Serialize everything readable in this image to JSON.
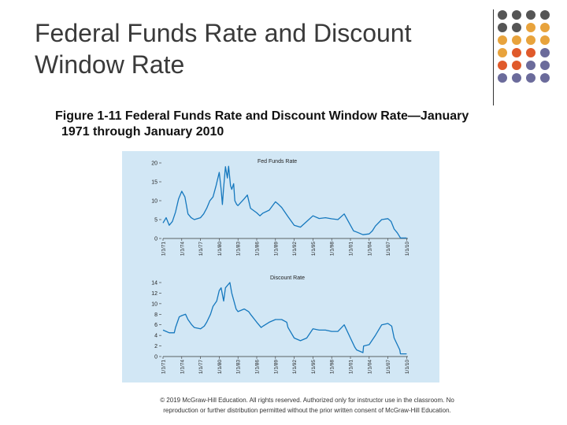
{
  "slide": {
    "title_line1": "Federal Funds Rate and Discount",
    "title_line2": "Window Rate",
    "caption_line1": "Figure 1-11 Federal Funds Rate and Discount Window Rate—January",
    "caption_line2": "1971 through January 2010",
    "copyright_line1": "© 2019 McGraw-Hill Education. All rights reserved. Authorized only for instructor use in the classroom. No",
    "copyright_line2": "reproduction or further distribution permitted without the prior written consent of McGraw-Hill Education."
  },
  "decor": {
    "dot_colors": [
      "#555555",
      "#e8a33c",
      "#e05a2b",
      "#6b6b9b"
    ]
  },
  "chart_data": [
    {
      "type": "line",
      "title": "Fed Funds Rate",
      "xlabel": "",
      "ylabel": "",
      "ylim": [
        0,
        20
      ],
      "yticks": [
        0,
        5,
        10,
        15,
        20
      ],
      "ytick_labels": [
        "0",
        "5",
        "10",
        "15",
        "20"
      ],
      "xlim": [
        1971,
        2010.2
      ],
      "xtick_values": [
        1971,
        1974,
        1977,
        1980,
        1983,
        1986,
        1989,
        1992,
        1995,
        1998,
        2001,
        2004,
        2007,
        2010
      ],
      "xtick_labels": [
        "1/1/71",
        "1/1/74",
        "1/1/77",
        "1/1/80",
        "1/1/83",
        "1/1/86",
        "1/1/89",
        "1/1/92",
        "1/1/95",
        "1/1/98",
        "1/1/01",
        "1/1/04",
        "1/1/07",
        "1/1/10"
      ],
      "color": "#1578be",
      "series": [
        {
          "name": "Fed Funds Rate",
          "x": [
            1971,
            1971.5,
            1972,
            1972.5,
            1973,
            1973.5,
            1974,
            1974.5,
            1975,
            1975.5,
            1976,
            1977,
            1977.5,
            1978,
            1978.5,
            1979,
            1979.5,
            1980,
            1980.3,
            1980.5,
            1980.7,
            1981,
            1981.3,
            1981.5,
            1981.8,
            1982,
            1982.3,
            1982.5,
            1982.8,
            1983,
            1984,
            1984.5,
            1985,
            1986,
            1986.5,
            1987,
            1988,
            1989,
            1989.5,
            1990,
            1991,
            1992,
            1993,
            1994,
            1995,
            1996,
            1997,
            1998,
            1999,
            2000,
            2001,
            2001.5,
            2002,
            2003,
            2004,
            2004.5,
            2005,
            2006,
            2007,
            2007.5,
            2008,
            2008.5,
            2009,
            2010
          ],
          "values": [
            4.1,
            5.5,
            3.5,
            4.5,
            7.0,
            10.5,
            12.5,
            11.0,
            6.5,
            5.5,
            5.0,
            5.5,
            6.5,
            8.0,
            10.0,
            11.0,
            14.0,
            17.5,
            13.0,
            9.0,
            13.5,
            19.0,
            16.0,
            19.1,
            14.0,
            13.0,
            14.5,
            10.0,
            9.0,
            8.7,
            10.5,
            11.5,
            8.0,
            6.8,
            6.0,
            6.7,
            7.5,
            9.7,
            9.0,
            8.2,
            5.8,
            3.5,
            3.0,
            4.5,
            6.0,
            5.3,
            5.5,
            5.2,
            5.0,
            6.5,
            3.5,
            2.0,
            1.7,
            1.0,
            1.2,
            2.0,
            3.3,
            5.0,
            5.25,
            4.5,
            2.5,
            1.5,
            0.15,
            0.12
          ]
        }
      ]
    },
    {
      "type": "line",
      "title": "Discount Rate",
      "xlabel": "",
      "ylabel": "",
      "ylim": [
        0,
        14
      ],
      "yticks": [
        0,
        2,
        4,
        6,
        8,
        10,
        12,
        14
      ],
      "ytick_labels": [
        "0",
        "2",
        "4",
        "6",
        "8",
        "10",
        "12",
        "14"
      ],
      "xlim": [
        1971,
        2010.2
      ],
      "xtick_values": [
        1971,
        1974,
        1977,
        1980,
        1983,
        1986,
        1989,
        1992,
        1995,
        1998,
        2001,
        2004,
        2007,
        2010
      ],
      "xtick_labels": [
        "1/1/71",
        "1/1/74",
        "1/1/77",
        "1/1/80",
        "1/1/83",
        "1/1/86",
        "1/1/89",
        "1/1/92",
        "1/1/95",
        "1/1/98",
        "1/1/01",
        "1/1/04",
        "1/1/07",
        "1/1/10"
      ],
      "color": "#1578be",
      "series": [
        {
          "name": "Discount Rate",
          "x": [
            1971,
            1971.5,
            1972,
            1972.8,
            1973,
            1973.6,
            1974,
            1974.6,
            1975,
            1975.6,
            1976,
            1977,
            1977.6,
            1978,
            1978.6,
            1979,
            1979.6,
            1980,
            1980.3,
            1980.7,
            1981,
            1981.7,
            1982,
            1982.7,
            1983,
            1984,
            1984.7,
            1985,
            1986,
            1986.7,
            1987,
            1988,
            1989,
            1990,
            1990.8,
            1991,
            1992,
            1993,
            1994,
            1995,
            1996,
            1997,
            1998,
            1999,
            2000,
            2001,
            2001.7,
            2002,
            2003,
            2003.1,
            2004,
            2005,
            2006,
            2007,
            2007.6,
            2008,
            2008.9,
            2009,
            2010
          ],
          "values": [
            5.0,
            4.75,
            4.5,
            4.5,
            5.5,
            7.5,
            7.75,
            8.0,
            7.0,
            6.0,
            5.5,
            5.25,
            5.75,
            6.5,
            8.0,
            9.5,
            10.5,
            12.5,
            13.0,
            10.5,
            13.0,
            14.0,
            12.0,
            9.0,
            8.5,
            9.0,
            8.5,
            8.0,
            6.5,
            5.5,
            5.75,
            6.5,
            7.0,
            7.0,
            6.5,
            5.5,
            3.5,
            3.0,
            3.5,
            5.25,
            5.0,
            5.0,
            4.75,
            4.75,
            6.0,
            3.5,
            1.75,
            1.25,
            0.75,
            2.0,
            2.25,
            4.0,
            6.0,
            6.25,
            5.75,
            3.5,
            1.25,
            0.5,
            0.5
          ]
        }
      ]
    }
  ]
}
